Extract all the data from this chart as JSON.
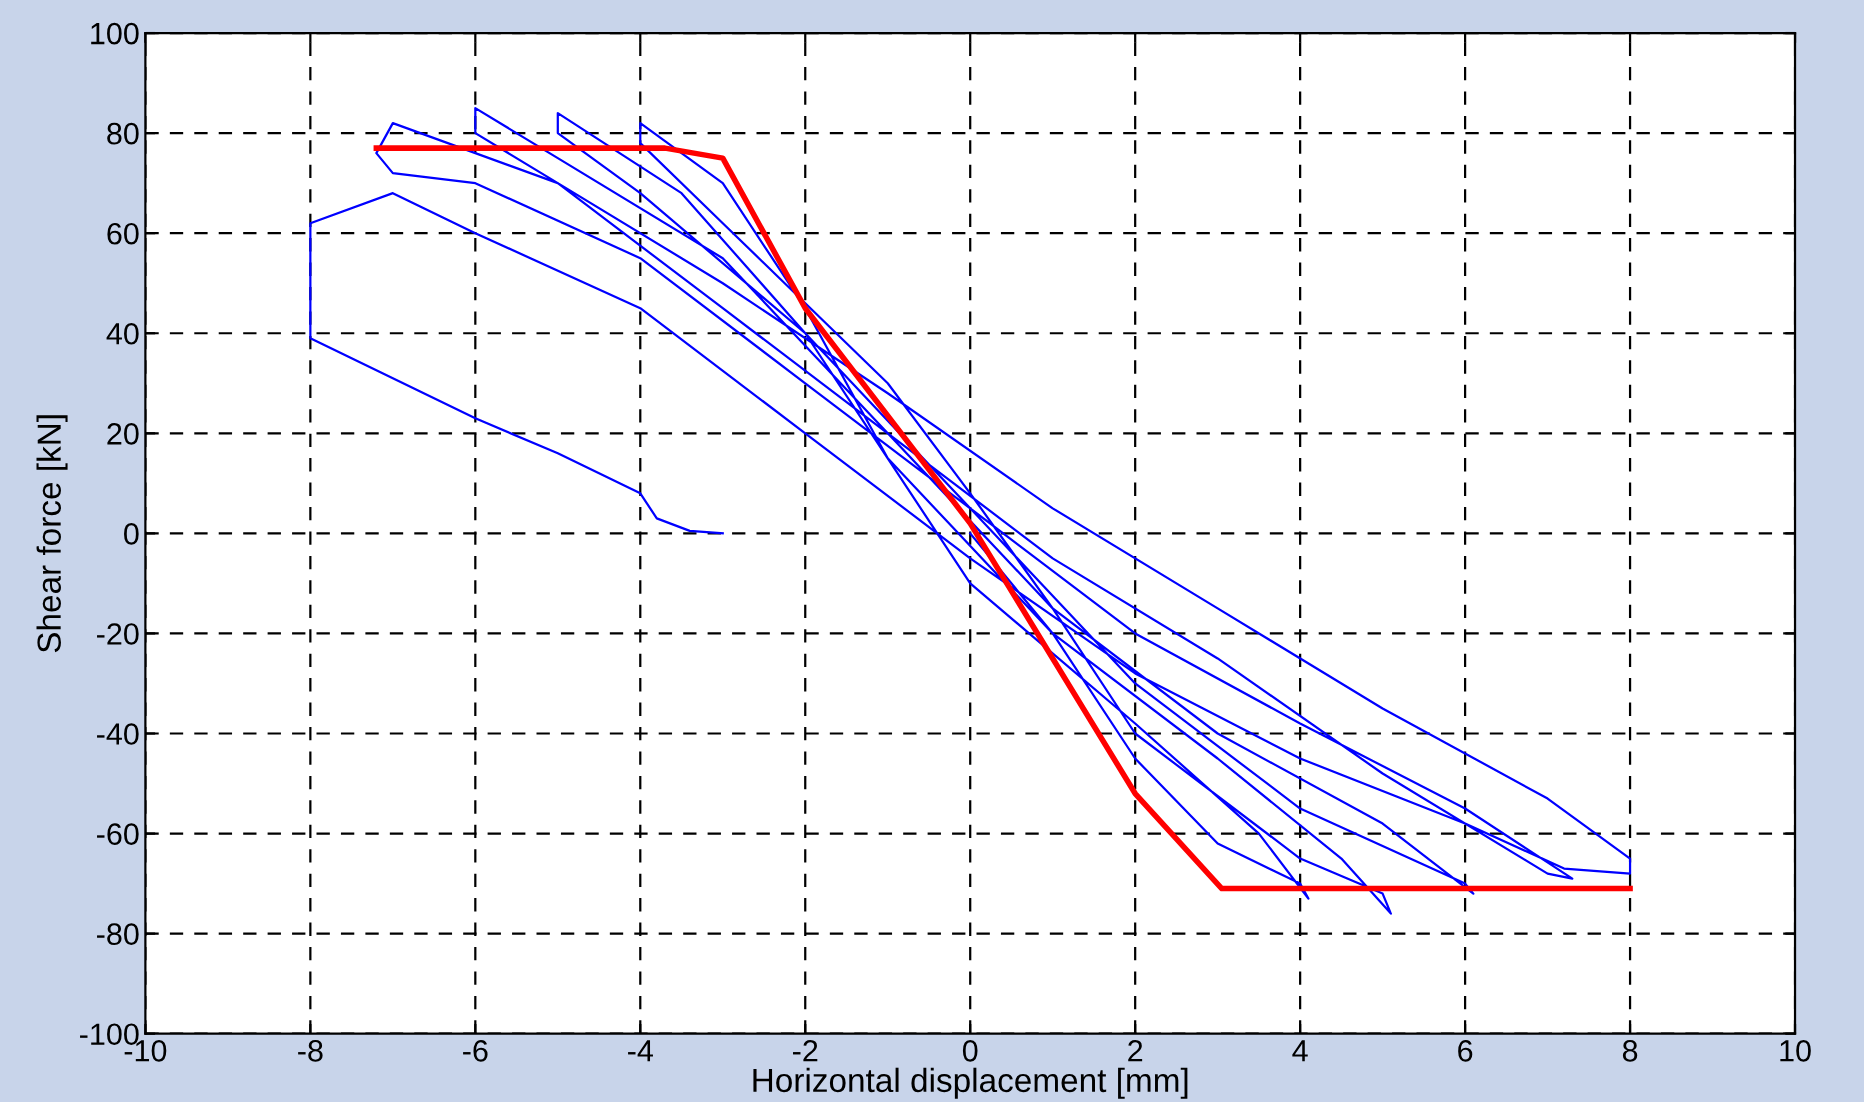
{
  "chart_data": {
    "type": "line",
    "xlabel": "Horizontal displacement [mm]",
    "ylabel": "Shear force [kN]",
    "xlim": [
      -10,
      10
    ],
    "ylim": [
      -100,
      100
    ],
    "xticks": [
      -10,
      -8,
      -6,
      -4,
      -2,
      0,
      2,
      4,
      6,
      8,
      10
    ],
    "yticks": [
      -100,
      -80,
      -60,
      -40,
      -20,
      0,
      20,
      40,
      60,
      80,
      100
    ],
    "grid": true,
    "line_style": "solid",
    "series": [
      {
        "color": "#0000ff",
        "x": [
          0,
          1,
          2,
          3,
          4,
          4.1,
          3.5,
          2,
          0,
          -1,
          -2,
          -3,
          -4,
          -4,
          -3,
          -1,
          0,
          1,
          2,
          4,
          5,
          5.1,
          4.5,
          3,
          1,
          -1,
          -2,
          -3.5,
          -5,
          -5,
          -4,
          -2,
          0,
          2,
          4,
          6,
          6.1,
          5,
          3,
          1,
          -1,
          -3,
          -5,
          -6,
          -6,
          -5,
          -3,
          -1,
          1,
          3,
          5,
          7,
          7.3,
          6,
          4,
          2,
          0,
          -2,
          -4,
          -6,
          -7,
          -7.2,
          -7,
          -6.5,
          -5,
          -3,
          -1,
          1,
          3,
          5,
          7,
          8,
          8,
          7.2,
          6,
          4,
          2,
          0,
          -2,
          -4,
          -6,
          -7,
          -8,
          -8,
          -6,
          -5,
          -4,
          -3.8,
          -3.4,
          -3
        ],
        "values": [
          0,
          -20,
          -45,
          -62,
          -70,
          -73,
          -60,
          -38,
          -10,
          15,
          45,
          70,
          82,
          78,
          62,
          30,
          8,
          -15,
          -40,
          -65,
          -72,
          -76,
          -65,
          -45,
          -20,
          15,
          40,
          68,
          84,
          80,
          68,
          40,
          5,
          -30,
          -55,
          -70,
          -72,
          -58,
          -40,
          -15,
          20,
          55,
          75,
          85,
          80,
          70,
          45,
          20,
          -5,
          -25,
          -48,
          -68,
          -69,
          -55,
          -38,
          -20,
          5,
          30,
          55,
          70,
          72,
          76,
          82,
          79,
          70,
          50,
          28,
          5,
          -15,
          -35,
          -53,
          -65,
          -68,
          -67,
          -58,
          -45,
          -28,
          -5,
          20,
          45,
          60,
          68,
          62,
          39,
          23,
          16,
          8,
          3,
          0.5,
          0
        ]
      },
      {
        "color": "#ff0000",
        "x": [
          -7.2,
          -3.7,
          -3,
          -2,
          0,
          2,
          3.05,
          8
        ],
        "values": [
          77,
          77,
          75,
          45,
          2,
          -52,
          -71,
          -71
        ]
      }
    ]
  }
}
